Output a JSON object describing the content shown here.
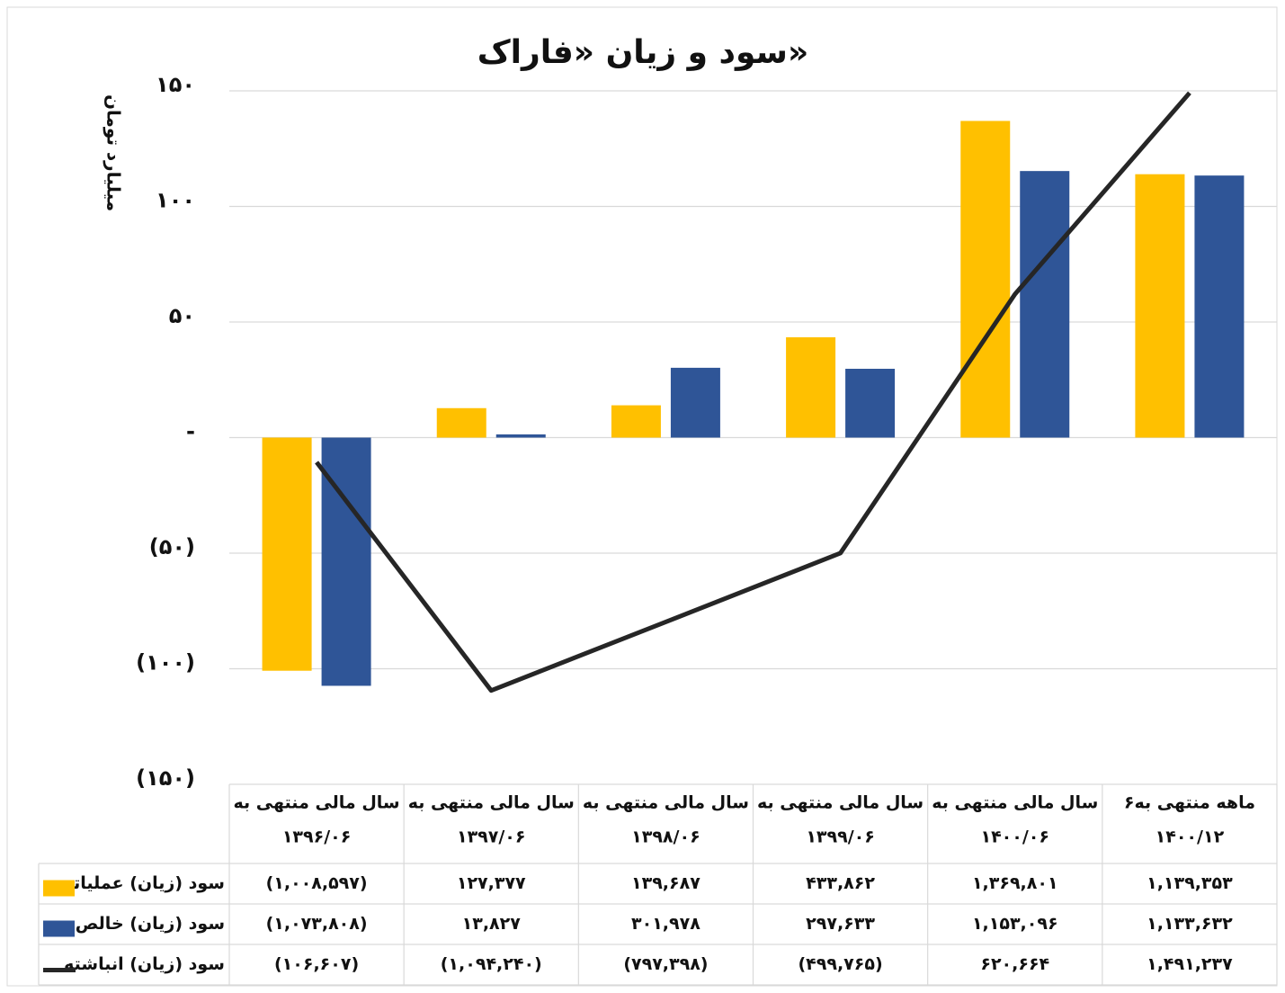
{
  "chart_data": {
    "type": "bar",
    "title": "سود و زیان «فاراک»",
    "y_axis_label": "میلیارد تومان",
    "categories": [
      [
        "سال مالی منتهی به",
        "۱۳۹۶/۰۶"
      ],
      [
        "سال مالی منتهی به",
        "۱۳۹۷/۰۶"
      ],
      [
        "سال مالی منتهی به",
        "۱۳۹۸/۰۶"
      ],
      [
        "سال مالی منتهی به",
        "۱۳۹۹/۰۶"
      ],
      [
        "سال مالی منتهی به",
        "۱۴۰۰/۰۶"
      ],
      [
        "۶ماهه منتهی به",
        "۱۴۰۰/۱۲"
      ]
    ],
    "series": [
      {
        "name": "سود (زیان) عملیاتی",
        "type": "bar",
        "color": "#FFC000",
        "values": [
          -100.8597,
          12.7377,
          13.9687,
          43.3862,
          136.9801,
          113.9353
        ],
        "value_labels": [
          "(۱,۰۰۸,۵۹۷)",
          "۱۲۷,۳۷۷",
          "۱۳۹,۶۸۷",
          "۴۳۳,۸۶۲",
          "۱,۳۶۹,۸۰۱",
          "۱,۱۳۹,۳۵۳"
        ]
      },
      {
        "name": "سود (زیان) خالص",
        "type": "bar",
        "color": "#2F5597",
        "values": [
          -107.3808,
          1.3827,
          30.1978,
          29.7633,
          115.3096,
          113.3632
        ],
        "value_labels": [
          "(۱,۰۷۳,۸۰۸)",
          "۱۳,۸۲۷",
          "۳۰۱,۹۷۸",
          "۲۹۷,۶۳۳",
          "۱,۱۵۳,۰۹۶",
          "۱,۱۳۳,۶۳۲"
        ]
      },
      {
        "name": "سود (زیان) انباشته",
        "type": "line",
        "color": "#262626",
        "values": [
          -10.6607,
          -109.424,
          -79.7398,
          -49.9765,
          62.0664,
          149.1237
        ],
        "value_labels": [
          "(۱۰۶,۶۰۷)",
          "(۱,۰۹۴,۲۴۰)",
          "(۷۹۷,۳۹۸)",
          "(۴۹۹,۷۶۵)",
          "۶۲۰,۶۶۴",
          "۱,۴۹۱,۲۳۷"
        ]
      }
    ],
    "ylim": [
      -150,
      150
    ],
    "yticks": [
      {
        "value": 150,
        "label": "۱۵۰"
      },
      {
        "value": 100,
        "label": "۱۰۰"
      },
      {
        "value": 50,
        "label": "۵۰"
      },
      {
        "value": 0,
        "label": "-"
      },
      {
        "value": -50,
        "label": "(۵۰)"
      },
      {
        "value": -100,
        "label": "(۱۰۰)"
      },
      {
        "value": -150,
        "label": "(۱۵۰)"
      }
    ],
    "grid": true
  }
}
